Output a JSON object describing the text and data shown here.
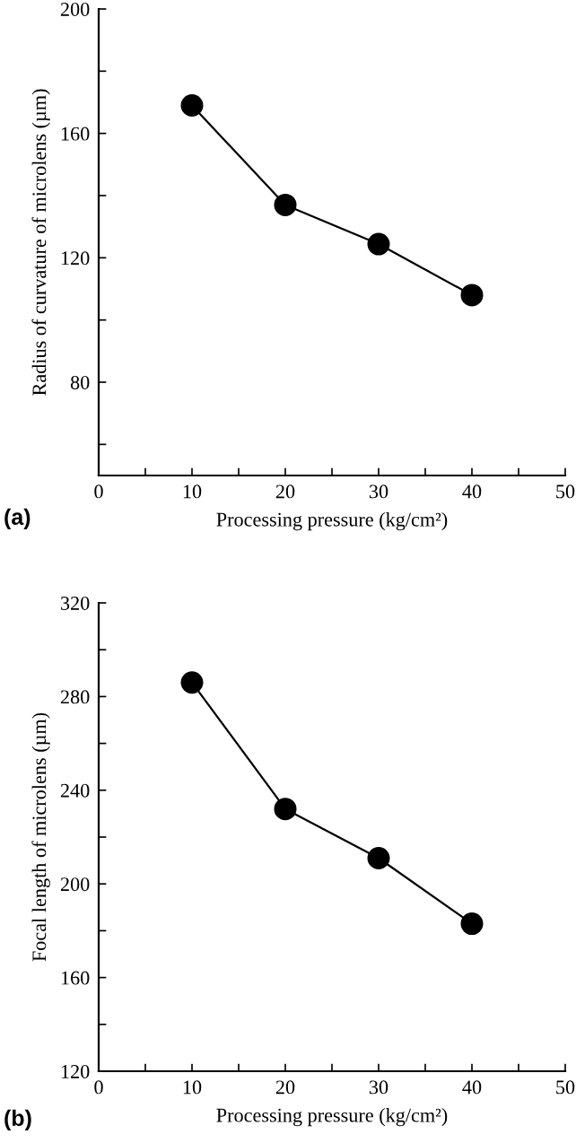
{
  "chart_data": [
    {
      "type": "line",
      "xlabel": "Processing pressure (kg/cm²)",
      "ylabel": "Radius of curvature of microlens (µm)",
      "annotations": [
        "(a)"
      ],
      "x": [
        10,
        20,
        30,
        40
      ],
      "series": [
        {
          "color": "#000000",
          "values": [
            169,
            137,
            124.4,
            108
          ]
        }
      ],
      "xlim": [
        0,
        50
      ],
      "xticks": [
        0,
        {
          "value": 5,
          "label": null
        },
        10,
        {
          "value": 15,
          "label": null
        },
        20,
        {
          "value": 25,
          "label": null
        },
        30,
        {
          "value": 35,
          "label": null
        },
        40,
        {
          "value": 45,
          "label": null
        },
        50
      ],
      "ylim": [
        50,
        200
      ],
      "yticks": [
        {
          "value": 60,
          "label": null
        },
        80,
        {
          "value": 100,
          "label": null
        },
        120,
        {
          "value": 140,
          "label": null
        },
        160,
        {
          "value": 180,
          "label": null
        },
        200
      ],
      "marker": "circle",
      "line_style": "solid",
      "grid": false,
      "legend": false
    },
    {
      "type": "line",
      "xlabel": "Processing pressure (kg/cm²)",
      "ylabel": "Focal length of microlens (µm)",
      "annotations": [
        "(b)"
      ],
      "x": [
        10,
        20,
        30,
        40
      ],
      "series": [
        {
          "color": "#000000",
          "values": [
            286,
            232,
            211,
            183
          ]
        }
      ],
      "xlim": [
        0,
        50
      ],
      "xticks": [
        0,
        {
          "value": 5,
          "label": null
        },
        10,
        {
          "value": 15,
          "label": null
        },
        20,
        {
          "value": 25,
          "label": null
        },
        30,
        {
          "value": 35,
          "label": null
        },
        40,
        {
          "value": 45,
          "label": null
        },
        50
      ],
      "ylim": [
        120,
        320
      ],
      "yticks": [
        120,
        {
          "value": 140,
          "label": null
        },
        160,
        {
          "value": 180,
          "label": null
        },
        200,
        {
          "value": 220,
          "label": null
        },
        240,
        {
          "value": 260,
          "label": null
        },
        280,
        {
          "value": 300,
          "label": null
        },
        320
      ],
      "marker": "circle",
      "line_style": "solid",
      "grid": false,
      "legend": false
    }
  ]
}
